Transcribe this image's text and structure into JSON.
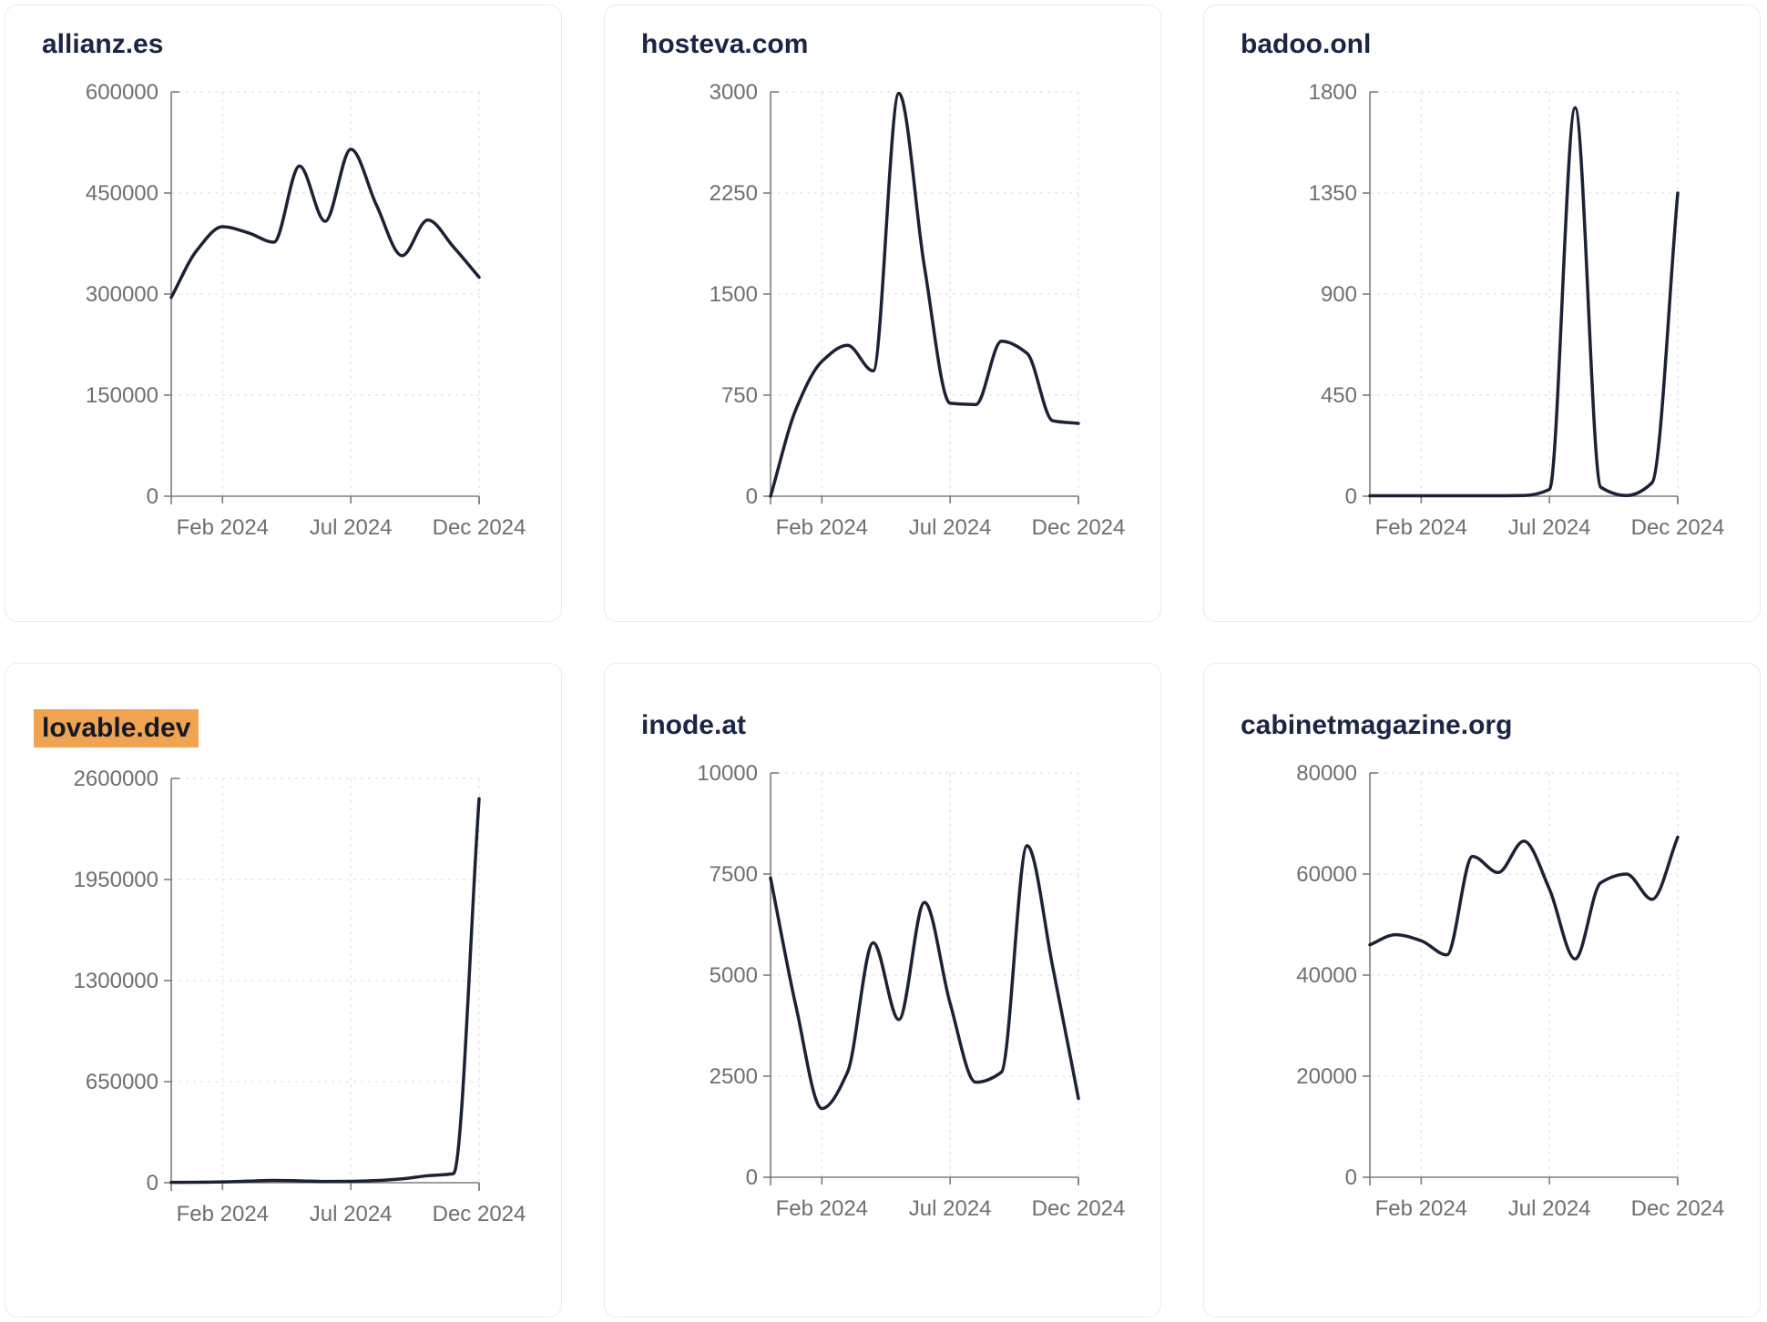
{
  "page": {
    "background": "#ffffff",
    "x_axis_tick_labels": [
      "Feb 2024",
      "Jul 2024",
      "Dec 2024"
    ]
  },
  "colors": {
    "page_bg": "#ffffff",
    "card_bg": "#ffffff",
    "card_border": "#e8ebf1",
    "line": "#1c2236",
    "title": "#1b2544",
    "tick": "#6f6f6f",
    "axis": "#7d7d7d",
    "grid": "#e6e6e6",
    "highlight_bg": "#f0a452",
    "highlight_text": "#141927"
  },
  "chart_data": [
    {
      "type": "line",
      "title": "allianz.es",
      "highlighted": false,
      "x": [
        "Dec 2023",
        "Jan 2024",
        "Feb 2024",
        "Mar 2024",
        "Apr 2024",
        "May 2024",
        "Jun 2024",
        "Jul 2024",
        "Aug 2024",
        "Sep 2024",
        "Oct 2024",
        "Nov 2024",
        "Dec 2024"
      ],
      "values": [
        295000,
        365000,
        400000,
        391000,
        377000,
        490000,
        408000,
        515000,
        432000,
        357000,
        410000,
        370000,
        325000
      ],
      "y_ticks": [
        0,
        150000,
        300000,
        450000,
        600000
      ],
      "ylim": [
        0,
        600000
      ],
      "x_tick_labels": [
        "Feb 2024",
        "Jul 2024",
        "Dec 2024"
      ],
      "x_tick_indices": [
        2,
        7,
        12
      ],
      "grid": true,
      "legend": false
    },
    {
      "type": "line",
      "title": "hosteva.com",
      "highlighted": false,
      "x": [
        "Dec 2023",
        "Jan 2024",
        "Feb 2024",
        "Mar 2024",
        "Apr 2024",
        "May 2024",
        "Jun 2024",
        "Jul 2024",
        "Aug 2024",
        "Sep 2024",
        "Oct 2024",
        "Nov 2024",
        "Dec 2024"
      ],
      "values": [
        0,
        650,
        1000,
        1120,
        930,
        2990,
        1700,
        690,
        680,
        1150,
        1060,
        560,
        540
      ],
      "y_ticks": [
        0,
        750,
        1500,
        2250,
        3000
      ],
      "ylim": [
        0,
        3000
      ],
      "x_tick_labels": [
        "Feb 2024",
        "Jul 2024",
        "Dec 2024"
      ],
      "x_tick_indices": [
        2,
        7,
        12
      ],
      "grid": true,
      "legend": false
    },
    {
      "type": "line",
      "title": "badoo.onl",
      "highlighted": false,
      "x": [
        "Dec 2023",
        "Jan 2024",
        "Feb 2024",
        "Mar 2024",
        "Apr 2024",
        "May 2024",
        "Jun 2024",
        "Jul 2024",
        "Aug 2024",
        "Sep 2024",
        "Oct 2024",
        "Nov 2024",
        "Dec 2024"
      ],
      "values": [
        2,
        2,
        2,
        2,
        2,
        2,
        3,
        30,
        1730,
        40,
        3,
        60,
        1350
      ],
      "y_ticks": [
        0,
        450,
        900,
        1350,
        1800
      ],
      "ylim": [
        0,
        1800
      ],
      "x_tick_labels": [
        "Feb 2024",
        "Jul 2024",
        "Dec 2024"
      ],
      "x_tick_indices": [
        2,
        7,
        12
      ],
      "grid": true,
      "legend": false
    },
    {
      "type": "line",
      "title": "lovable.dev",
      "highlighted": true,
      "x": [
        "Dec 2023",
        "Jan 2024",
        "Feb 2024",
        "Mar 2024",
        "Apr 2024",
        "May 2024",
        "Jun 2024",
        "Jul 2024",
        "Aug 2024",
        "Sep 2024",
        "Oct 2024",
        "Nov 2024",
        "Dec 2024"
      ],
      "values": [
        2000,
        3000,
        5000,
        10000,
        15000,
        12000,
        8000,
        9000,
        14000,
        25000,
        45000,
        58000,
        2470000
      ],
      "y_ticks": [
        0,
        650000,
        1300000,
        1950000,
        2600000
      ],
      "ylim": [
        0,
        2600000
      ],
      "x_tick_labels": [
        "Feb 2024",
        "Jul 2024",
        "Dec 2024"
      ],
      "x_tick_indices": [
        2,
        7,
        12
      ],
      "grid": true,
      "legend": false
    },
    {
      "type": "line",
      "title": "inode.at",
      "highlighted": false,
      "x": [
        "Dec 2023",
        "Jan 2024",
        "Feb 2024",
        "Mar 2024",
        "Apr 2024",
        "May 2024",
        "Jun 2024",
        "Jul 2024",
        "Aug 2024",
        "Sep 2024",
        "Oct 2024",
        "Nov 2024",
        "Dec 2024"
      ],
      "values": [
        7400,
        4200,
        1700,
        2600,
        5800,
        3900,
        6800,
        4300,
        2350,
        2600,
        8200,
        5200,
        1950
      ],
      "y_ticks": [
        0,
        2500,
        5000,
        7500,
        10000
      ],
      "ylim": [
        0,
        10000
      ],
      "x_tick_labels": [
        "Feb 2024",
        "Jul 2024",
        "Dec 2024"
      ],
      "x_tick_indices": [
        2,
        7,
        12
      ],
      "grid": true,
      "legend": false
    },
    {
      "type": "line",
      "title": "cabinetmagazine.org",
      "highlighted": false,
      "x": [
        "Dec 2023",
        "Jan 2024",
        "Feb 2024",
        "Mar 2024",
        "Apr 2024",
        "May 2024",
        "Jun 2024",
        "Jul 2024",
        "Aug 2024",
        "Sep 2024",
        "Oct 2024",
        "Nov 2024",
        "Dec 2024"
      ],
      "values": [
        46000,
        48000,
        46800,
        44000,
        63500,
        60300,
        66500,
        57000,
        43200,
        58300,
        60000,
        55000,
        67300
      ],
      "y_ticks": [
        0,
        20000,
        40000,
        60000,
        80000
      ],
      "ylim": [
        0,
        80000
      ],
      "x_tick_labels": [
        "Feb 2024",
        "Jul 2024",
        "Dec 2024"
      ],
      "x_tick_indices": [
        2,
        7,
        12
      ],
      "grid": true,
      "legend": false
    }
  ]
}
